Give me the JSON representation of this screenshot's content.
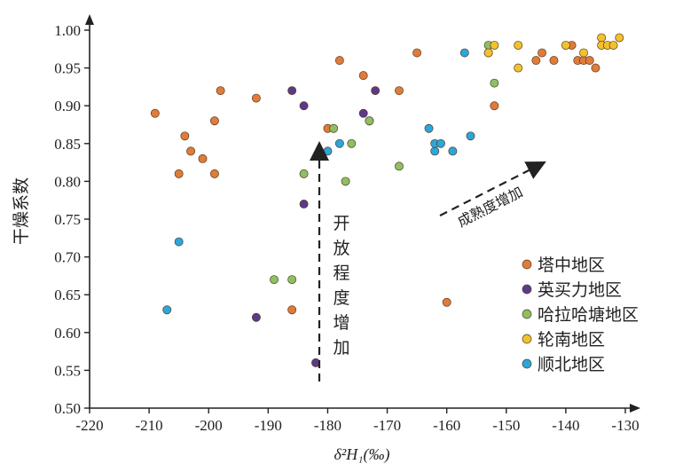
{
  "chart_data": {
    "type": "scatter",
    "xlabel": "δ²H₁(‰)",
    "ylabel": "干燥系数",
    "xlim": [
      -220,
      -130
    ],
    "ylim": [
      0.5,
      1.0
    ],
    "x_ticks": [
      "-220",
      "-210",
      "-200",
      "-190",
      "-180",
      "-170",
      "-160",
      "-150",
      "-140",
      "-130"
    ],
    "y_ticks": [
      "0.50",
      "0.55",
      "0.60",
      "0.65",
      "0.70",
      "0.75",
      "0.80",
      "0.85",
      "0.90",
      "0.95",
      "1.00"
    ],
    "grid": false,
    "legend_position": "right",
    "annotations": [
      {
        "text": "开放程度增加",
        "orientation": "vertical",
        "arrow": "up"
      },
      {
        "text": "成熟度增加",
        "orientation": "diagonal",
        "arrow": "up-right"
      }
    ],
    "series": [
      {
        "name": "塔中地区",
        "color": "#e07b39",
        "points": [
          [
            -209,
            0.89
          ],
          [
            -204,
            0.86
          ],
          [
            -203,
            0.84
          ],
          [
            -205,
            0.81
          ],
          [
            -201,
            0.83
          ],
          [
            -199,
            0.81
          ],
          [
            -199,
            0.88
          ],
          [
            -198,
            0.92
          ],
          [
            -192,
            0.91
          ],
          [
            -186,
            0.63
          ],
          [
            -180,
            0.87
          ],
          [
            -178,
            0.96
          ],
          [
            -174,
            0.94
          ],
          [
            -173,
            0.88
          ],
          [
            -168,
            0.92
          ],
          [
            -165,
            0.97
          ],
          [
            -160,
            0.64
          ],
          [
            -153,
            0.97
          ],
          [
            -152,
            0.9
          ],
          [
            -145,
            0.96
          ],
          [
            -144,
            0.97
          ],
          [
            -142,
            0.96
          ],
          [
            -139,
            0.98
          ],
          [
            -138,
            0.96
          ],
          [
            -137,
            0.96
          ],
          [
            -136,
            0.96
          ],
          [
            -135,
            0.95
          ]
        ]
      },
      {
        "name": "英买力地区",
        "color": "#5b3a8c",
        "points": [
          [
            -192,
            0.62
          ],
          [
            -186,
            0.92
          ],
          [
            -184,
            0.9
          ],
          [
            -184,
            0.77
          ],
          [
            -182,
            0.56
          ],
          [
            -174,
            0.89
          ],
          [
            -172,
            0.92
          ]
        ]
      },
      {
        "name": "哈拉哈塘地区",
        "color": "#8cc063",
        "points": [
          [
            -189,
            0.67
          ],
          [
            -186,
            0.67
          ],
          [
            -184,
            0.81
          ],
          [
            -179,
            0.87
          ],
          [
            -177,
            0.8
          ],
          [
            -176,
            0.85
          ],
          [
            -173,
            0.88
          ],
          [
            -168,
            0.82
          ],
          [
            -153,
            0.98
          ],
          [
            -152,
            0.93
          ]
        ]
      },
      {
        "name": "轮南地区",
        "color": "#f2c12e",
        "points": [
          [
            -153,
            0.97
          ],
          [
            -152,
            0.98
          ],
          [
            -148,
            0.98
          ],
          [
            -148,
            0.95
          ],
          [
            -140,
            0.98
          ],
          [
            -137,
            0.97
          ],
          [
            -134,
            0.99
          ],
          [
            -134,
            0.98
          ],
          [
            -133,
            0.98
          ],
          [
            -132,
            0.98
          ],
          [
            -131,
            0.99
          ]
        ]
      },
      {
        "name": "顺北地区",
        "color": "#2aa7dc",
        "points": [
          [
            -207,
            0.63
          ],
          [
            -205,
            0.72
          ],
          [
            -180,
            0.84
          ],
          [
            -178,
            0.85
          ],
          [
            -163,
            0.87
          ],
          [
            -162,
            0.84
          ],
          [
            -162,
            0.85
          ],
          [
            -161,
            0.85
          ],
          [
            -159,
            0.84
          ],
          [
            -156,
            0.86
          ],
          [
            -157,
            0.97
          ]
        ]
      }
    ]
  }
}
